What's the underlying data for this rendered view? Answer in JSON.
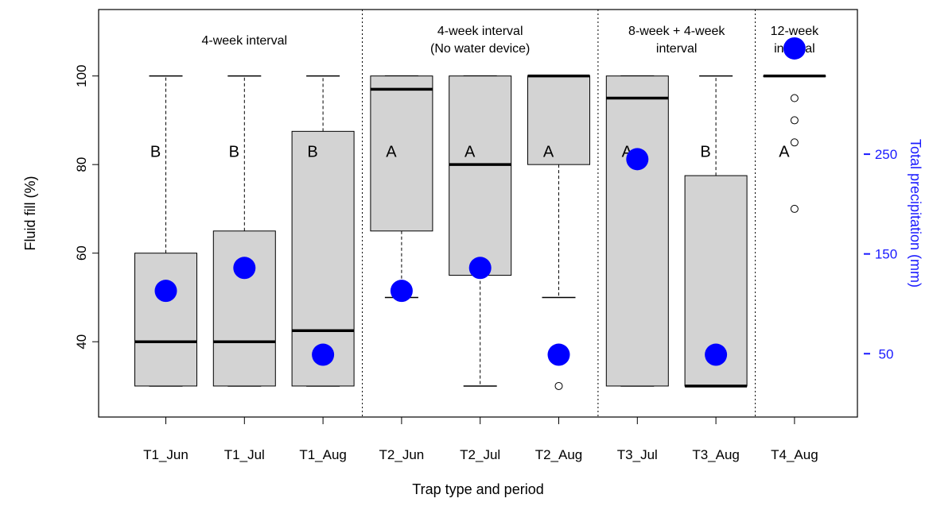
{
  "chart_data": {
    "type": "box",
    "xlabel": "Trap type and period",
    "ylabel": "Fluid fill (%)",
    "y2label": "Total precipitation (mm)",
    "ylim": [
      23,
      115
    ],
    "y2lim": [
      -13.5,
      395
    ],
    "yticks": [
      40,
      60,
      80,
      100
    ],
    "y2ticks": [
      50,
      150,
      250
    ],
    "y2tick_labels": [
      "50",
      "150",
      "250"
    ],
    "categories": [
      "T1_Jun",
      "T1_Jul",
      "T1_Aug",
      "T2_Jun",
      "T2_Jul",
      "T2_Aug",
      "T3_Jul",
      "T3_Aug",
      "T4_Aug"
    ],
    "boxes": [
      {
        "category": "T1_Jun",
        "whisker_low": 30,
        "q1": 30,
        "median": 40,
        "q3": 60,
        "whisker_high": 100,
        "outliers": []
      },
      {
        "category": "T1_Jul",
        "whisker_low": 30,
        "q1": 30,
        "median": 40,
        "q3": 65,
        "whisker_high": 100,
        "outliers": []
      },
      {
        "category": "T1_Aug",
        "whisker_low": 30,
        "q1": 30,
        "median": 42.5,
        "q3": 87.5,
        "whisker_high": 100,
        "outliers": []
      },
      {
        "category": "T2_Jun",
        "whisker_low": 50,
        "q1": 65,
        "median": 97,
        "q3": 100,
        "whisker_high": 100,
        "outliers": []
      },
      {
        "category": "T2_Jul",
        "whisker_low": 30,
        "q1": 55,
        "median": 80,
        "q3": 100,
        "whisker_high": 100,
        "outliers": []
      },
      {
        "category": "T2_Aug",
        "whisker_low": 50,
        "q1": 80,
        "median": 100,
        "q3": 100,
        "whisker_high": 100,
        "outliers": [
          30
        ]
      },
      {
        "category": "T3_Jul",
        "whisker_low": 30,
        "q1": 30,
        "median": 95,
        "q3": 100,
        "whisker_high": 100,
        "outliers": []
      },
      {
        "category": "T3_Aug",
        "whisker_low": 30,
        "q1": 30,
        "median": 30,
        "q3": 77.5,
        "whisker_high": 100,
        "outliers": []
      },
      {
        "category": "T4_Aug",
        "whisker_low": 100,
        "q1": 100,
        "median": 100,
        "q3": 100,
        "whisker_high": 100,
        "outliers": [
          95,
          90,
          85,
          70
        ]
      }
    ],
    "letters": [
      "B",
      "B",
      "B",
      "A",
      "A",
      "A",
      "A",
      "B",
      "A"
    ],
    "letter_y": 83,
    "precipitation": [
      113,
      136,
      49,
      113,
      136,
      49,
      245,
      49,
      356
    ],
    "groups": [
      {
        "lines": [
          "4-week interval"
        ],
        "from": 0,
        "to": 2
      },
      {
        "lines": [
          "4-week interval",
          "(No water device)"
        ],
        "from": 3,
        "to": 5
      },
      {
        "lines": [
          "8-week + 4-week",
          "interval"
        ],
        "from": 6,
        "to": 7
      },
      {
        "lines": [
          "12-week",
          "interval"
        ],
        "from": 8,
        "to": 8
      }
    ],
    "colors": {
      "box_fill": "#d3d3d3",
      "precip_point": "#0000ff",
      "right_axis": "#1a1aff"
    }
  }
}
